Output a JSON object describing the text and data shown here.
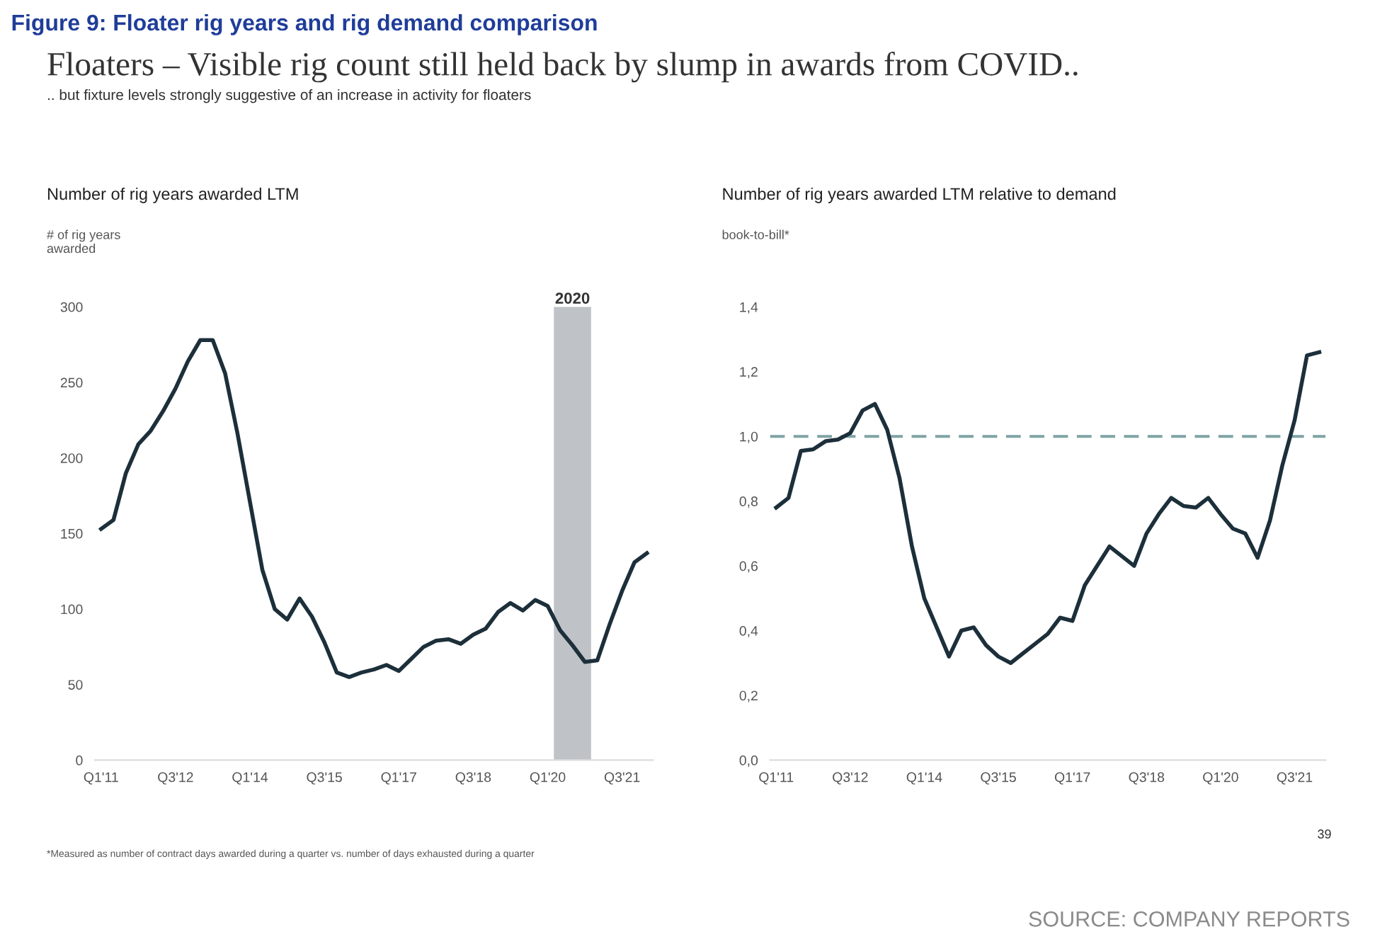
{
  "chart_data": [
    {
      "type": "line",
      "title": "Number of rig years awarded LTM",
      "ylabel": "# of rig years\nawarded",
      "annotations": [
        "Figure 9: Floater rig years and rig demand comparison",
        "Floaters – Visible rig count still held back by slump in awards from COVID..",
        ".. but fixture levels strongly suggestive of an increase in activity for floaters",
        "*Measured as number of contract days awarded during a quarter vs. number of days exhausted during a quarter",
        "39",
        "SOURCE: COMPANY REPORTS",
        "2020"
      ],
      "categories": [
        "Q1'11",
        null,
        null,
        null,
        null,
        null,
        "Q3'12",
        null,
        null,
        null,
        null,
        null,
        "Q1'14",
        null,
        null,
        null,
        null,
        null,
        "Q3'15",
        null,
        null,
        null,
        null,
        null,
        "Q1'17",
        null,
        null,
        null,
        null,
        null,
        "Q3'18",
        null,
        null,
        null,
        null,
        null,
        "Q1'20",
        null,
        null,
        null,
        null,
        null,
        "Q3'21",
        null,
        null
      ],
      "series": [
        {
          "color": "#1c2f3a",
          "values": [
            153,
            159,
            190,
            209,
            218,
            231,
            246,
            264,
            278,
            278,
            256,
            216,
            171,
            126,
            100,
            93,
            107,
            95,
            78,
            58,
            55,
            58,
            60,
            63,
            59,
            67,
            75,
            79,
            80,
            77,
            83,
            87,
            98,
            104,
            99,
            106,
            102,
            86,
            76,
            65,
            66,
            90,
            112,
            131,
            137
          ]
        }
      ],
      "ylim": [
        0,
        300
      ],
      "yticks": [
        0,
        50,
        100,
        150,
        200,
        250,
        300
      ],
      "marker": "none",
      "line_style": "solid"
    },
    {
      "type": "line",
      "title": "Number of rig years awarded LTM relative to demand",
      "ylabel": "book-to-bill*",
      "categories": [
        "Q1'11",
        null,
        null,
        null,
        null,
        null,
        "Q3'12",
        null,
        null,
        null,
        null,
        null,
        "Q1'14",
        null,
        null,
        null,
        null,
        null,
        "Q3'15",
        null,
        null,
        null,
        null,
        null,
        "Q1'17",
        null,
        null,
        null,
        null,
        null,
        "Q3'18",
        null,
        null,
        null,
        null,
        null,
        "Q1'20",
        null,
        null,
        null,
        null,
        null,
        "Q3'21",
        null,
        null
      ],
      "series": [
        {
          "color": "#1c2f3a",
          "values": [
            0.78,
            0.81,
            0.955,
            0.96,
            0.985,
            0.99,
            1.01,
            1.08,
            1.1,
            1.02,
            0.87,
            0.66,
            0.5,
            0.41,
            0.32,
            0.4,
            0.41,
            0.355,
            0.32,
            0.3,
            0.33,
            0.36,
            0.39,
            0.44,
            0.43,
            0.54,
            0.6,
            0.66,
            0.63,
            0.6,
            0.7,
            0.76,
            0.81,
            0.785,
            0.78,
            0.81,
            0.76,
            0.715,
            0.7,
            0.625,
            0.74,
            0.91,
            1.05,
            1.25,
            1.26
          ]
        }
      ],
      "ylim": [
        0,
        1.4
      ],
      "yticks": [
        {
          "value": 0,
          "label": "0,0"
        },
        {
          "value": 0.2,
          "label": "0,2"
        },
        {
          "value": 0.4,
          "label": "0,4"
        },
        {
          "value": 0.6,
          "label": "0,6"
        },
        {
          "value": 0.8,
          "label": "0,8"
        },
        {
          "value": 1.0,
          "label": "1,0"
        },
        {
          "value": 1.2,
          "label": "1,2"
        },
        {
          "value": 1.4,
          "label": "1,4"
        }
      ],
      "ref_lines": [
        {
          "axis": "y",
          "value": 1.0,
          "color": "#7fa3a5",
          "line_style": "dashed"
        }
      ],
      "marker": "none",
      "line_style": "solid"
    }
  ]
}
